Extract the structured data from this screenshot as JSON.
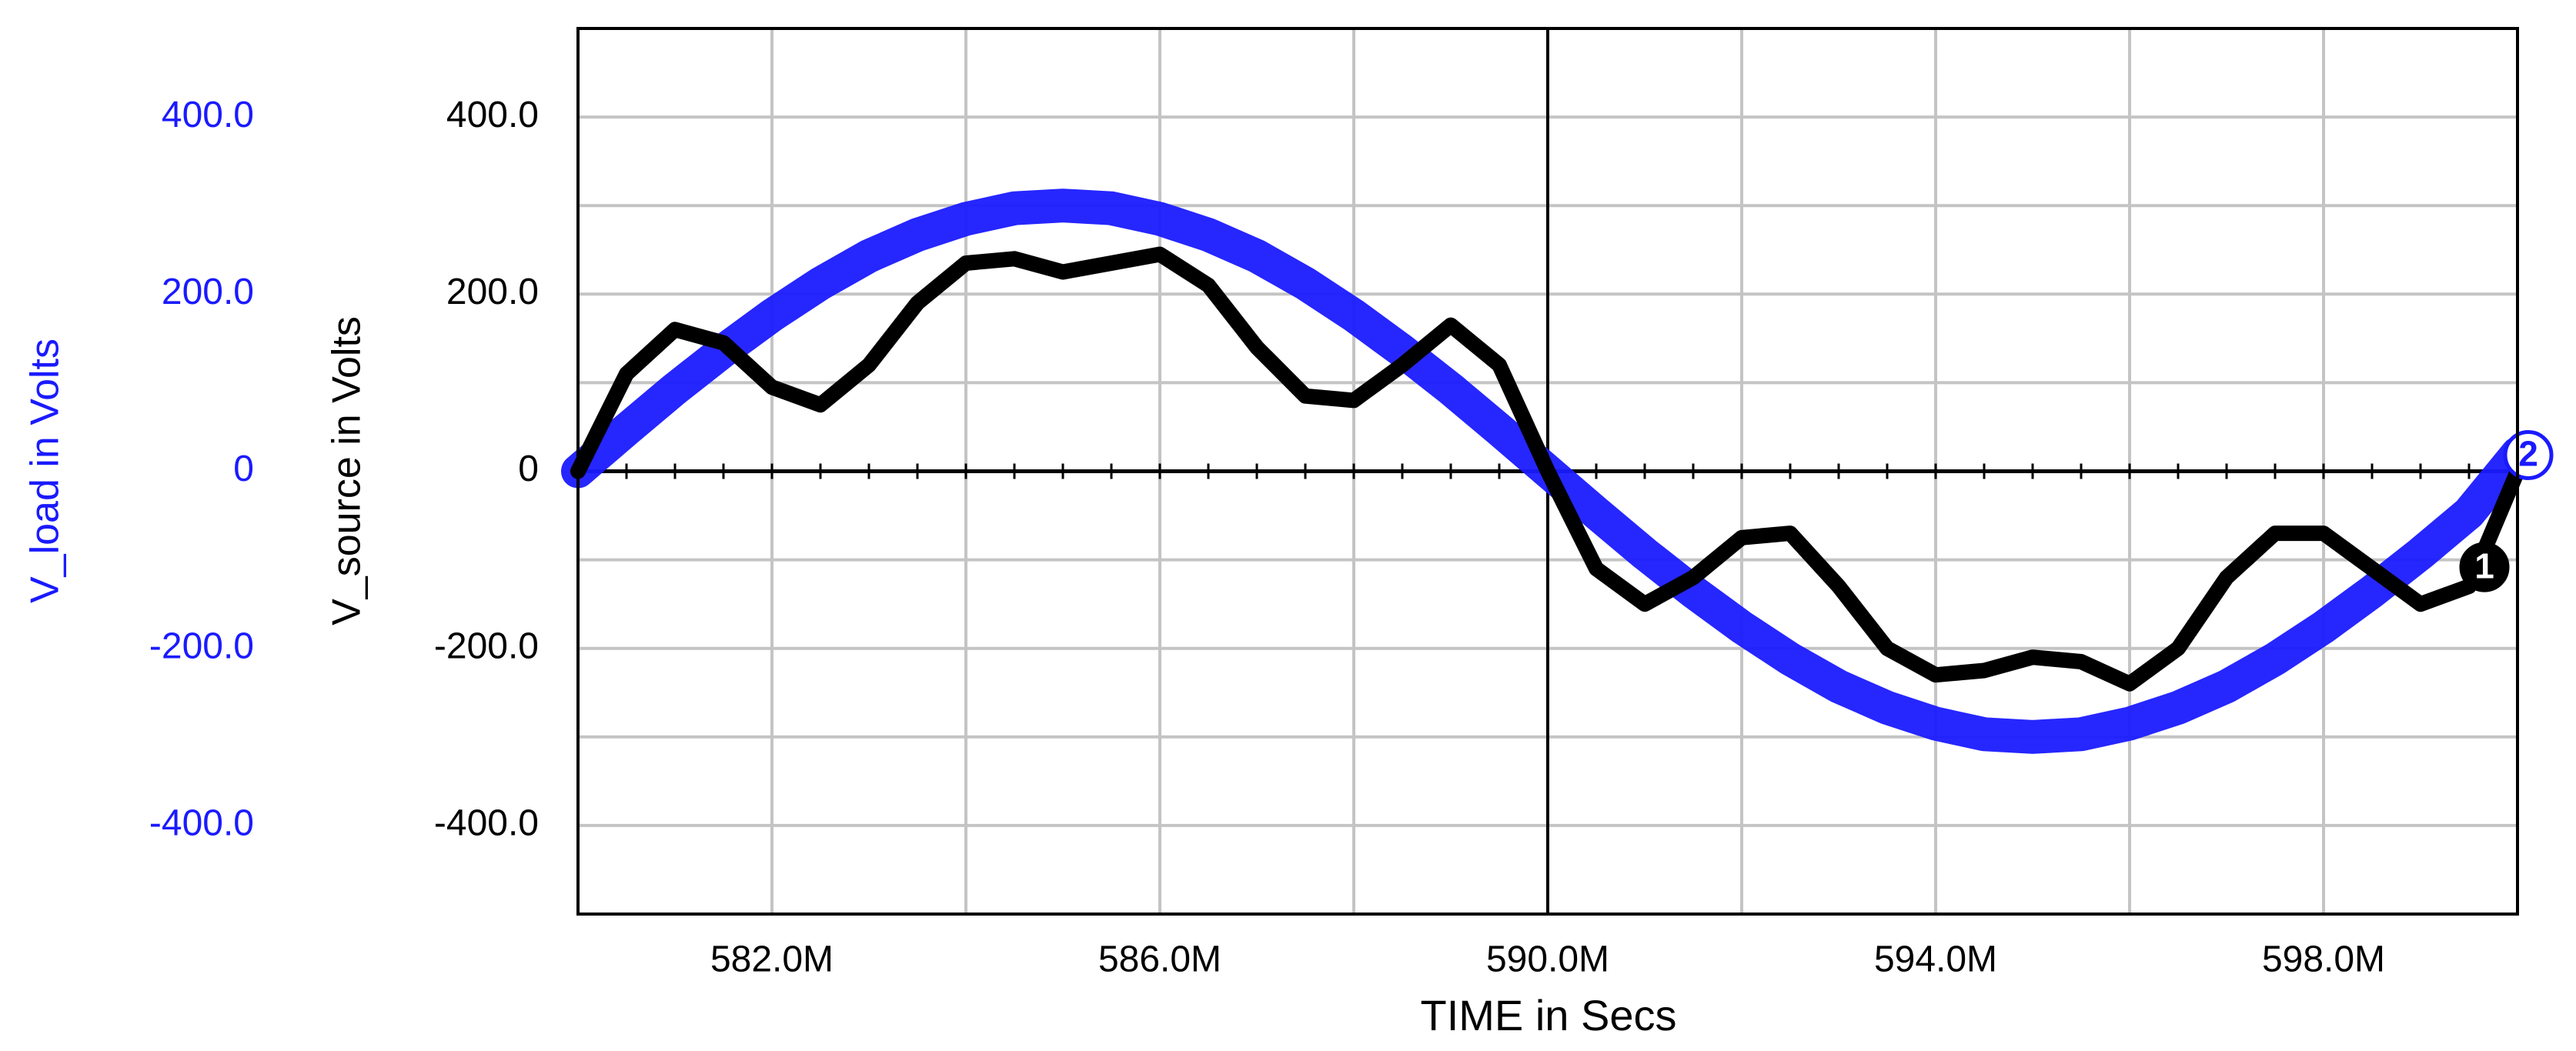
{
  "chart_data": {
    "type": "line",
    "x_label": "TIME in Secs",
    "y_label": "V_source in Volts",
    "y2_label": "V_load in Volts",
    "x": [
      580,
      580.5,
      581,
      581.5,
      582,
      582.5,
      583,
      583.5,
      584,
      584.5,
      585,
      585.5,
      586,
      586.5,
      587,
      587.5,
      588,
      588.5,
      589,
      589.5,
      590,
      590.5,
      591,
      591.5,
      592,
      592.5,
      593,
      593.5,
      594,
      594.5,
      595,
      595.5,
      596,
      596.5,
      597,
      597.5,
      598,
      598.5,
      599,
      599.5,
      600
    ],
    "series": [
      {
        "name": "V_load",
        "axis": "y2",
        "color": "#1a1aff",
        "marker_label": "2",
        "values": [
          0,
          47,
          93,
          136,
          176,
          212,
          243,
          267,
          285,
          297,
          300,
          297,
          285,
          267,
          243,
          212,
          176,
          136,
          93,
          47,
          0,
          -47,
          -93,
          -136,
          -176,
          -212,
          -243,
          -267,
          -285,
          -297,
          -300,
          -297,
          -285,
          -267,
          -243,
          -212,
          -176,
          -136,
          -93,
          -47,
          20
        ]
      },
      {
        "name": "V_source",
        "color": "#000000",
        "marker_label": "1",
        "values": [
          0,
          110,
          160,
          145,
          95,
          75,
          120,
          190,
          235,
          240,
          225,
          235,
          245,
          210,
          140,
          85,
          80,
          120,
          165,
          120,
          0,
          -110,
          -150,
          -120,
          -75,
          -70,
          -130,
          -200,
          -230,
          -225,
          -210,
          -215,
          -240,
          -200,
          -120,
          -70,
          -70,
          -110,
          -150,
          -130,
          0
        ]
      }
    ],
    "xlim": [
      580,
      600
    ],
    "xticks": [
      {
        "value": 582,
        "label": "582.0M"
      },
      {
        "value": 586,
        "label": "586.0M"
      },
      {
        "value": 590,
        "label": "590.0M"
      },
      {
        "value": 594,
        "label": "594.0M"
      },
      {
        "value": 598,
        "label": "598.0M"
      }
    ],
    "xgrid": [
      582,
      584,
      586,
      588,
      592,
      594,
      596,
      598
    ],
    "crosshair_x": 590,
    "ylim": [
      -500,
      500
    ],
    "yticks": [
      {
        "value": 400,
        "label": "400.0"
      },
      {
        "value": 200,
        "label": "200.0"
      },
      0,
      {
        "value": -200,
        "label": "-200.0"
      },
      {
        "value": -400,
        "label": "-400.0"
      }
    ],
    "y2lim": [
      -500,
      500
    ],
    "y2ticks": [
      {
        "value": 400,
        "label": "400.0"
      },
      {
        "value": 200,
        "label": "200.0"
      },
      0,
      {
        "value": -200,
        "label": "-200.0"
      },
      {
        "value": -400,
        "label": "-400.0"
      }
    ],
    "ygrid": [
      -400,
      -300,
      -200,
      -100,
      100,
      200,
      300,
      400
    ]
  }
}
